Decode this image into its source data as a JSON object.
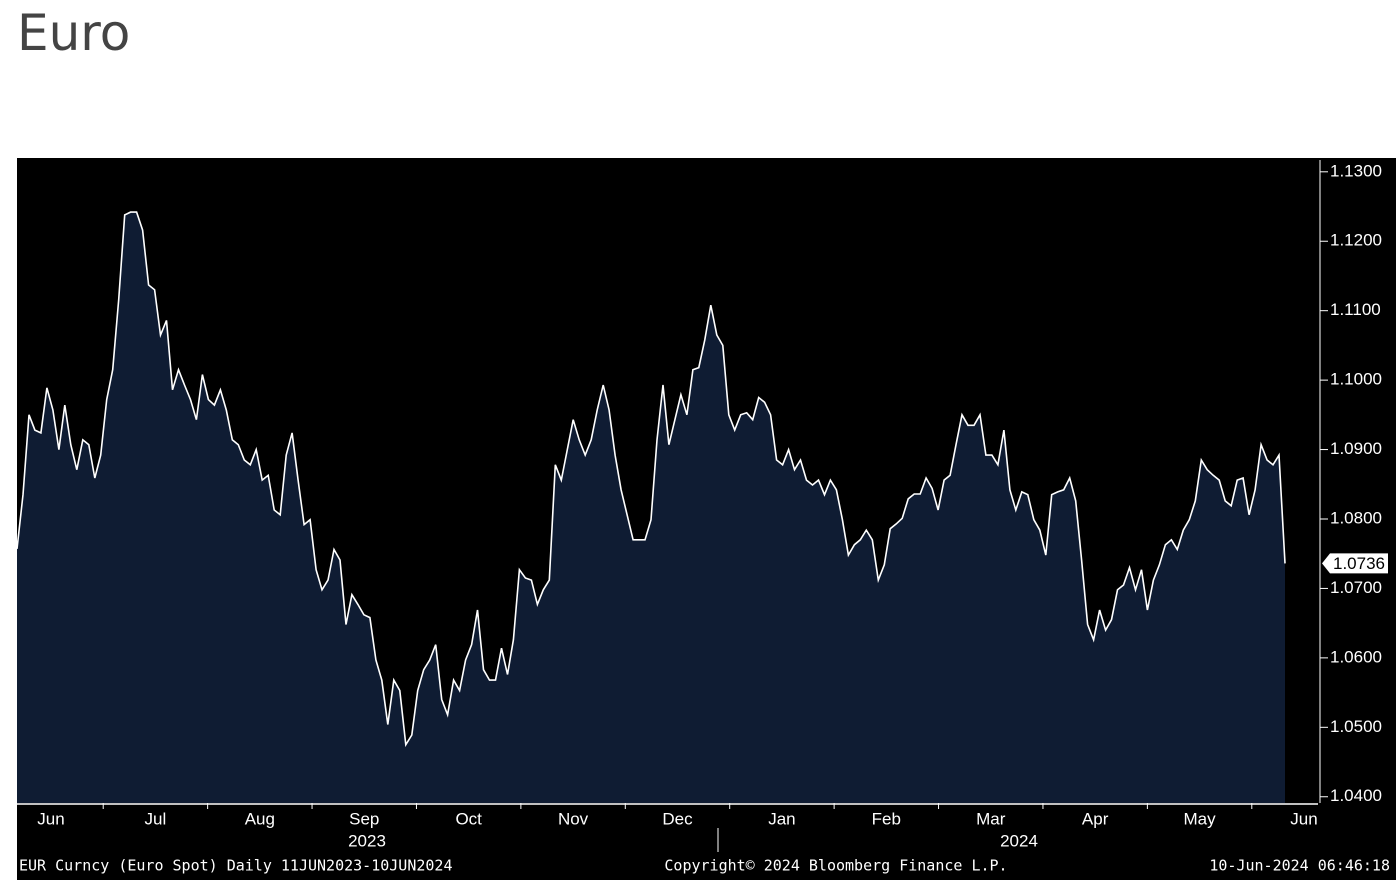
{
  "chart_data": {
    "type": "area",
    "title": "Euro",
    "color": "#0f1c33",
    "line_color": "#ffffff",
    "ylim": [
      1.0391,
      1.1317
    ],
    "yticks": [
      {
        "value": 1.04,
        "label": "1.0400"
      },
      {
        "value": 1.05,
        "label": "1.0500"
      },
      {
        "value": 1.06,
        "label": "1.0600"
      },
      {
        "value": 1.07,
        "label": "1.0700"
      },
      {
        "value": 1.08,
        "label": "1.0800"
      },
      {
        "value": 1.09,
        "label": "1.0900"
      },
      {
        "value": 1.1,
        "label": "1.1000"
      },
      {
        "value": 1.11,
        "label": "1.1100"
      },
      {
        "value": 1.12,
        "label": "1.1200"
      },
      {
        "value": 1.13,
        "label": "1.1300"
      }
    ],
    "months": [
      "Jun",
      "Jul",
      "Aug",
      "Sep",
      "Oct",
      "Nov",
      "Dec",
      "Jan",
      "Feb",
      "Mar",
      "Apr",
      "May",
      "Jun"
    ],
    "years": [
      "2023",
      "2024"
    ],
    "footer": [
      "EUR Curncy (Euro Spot)  Daily 11JUN2023-10JUN2024",
      "Copyright© 2024 Bloomberg Finance L.P.",
      "10-Jun-2024 06:46:18"
    ],
    "values": [
      1.0757,
      1.0835,
      1.095,
      1.0928,
      1.0924,
      1.0989,
      1.0957,
      1.09,
      1.0964,
      1.0907,
      1.0871,
      1.0914,
      1.0907,
      1.0859,
      1.0892,
      1.0972,
      1.1015,
      1.1116,
      1.1238,
      1.1242,
      1.1242,
      1.1216,
      1.1137,
      1.113,
      1.1065,
      1.1086,
      1.0986,
      1.1015,
      1.0993,
      1.0972,
      1.0943,
      1.1008,
      1.0972,
      1.0964,
      1.0986,
      1.0957,
      1.0914,
      1.0907,
      1.0885,
      1.0878,
      1.09,
      1.0856,
      1.0863,
      1.0813,
      1.0806,
      1.0892,
      1.0924,
      1.0856,
      1.0792,
      1.0799,
      1.0727,
      1.0698,
      1.0712,
      1.0756,
      1.0741,
      1.0648,
      1.0691,
      1.0677,
      1.0662,
      1.0658,
      1.0597,
      1.0568,
      1.0504,
      1.0568,
      1.0553,
      1.0475,
      1.0489,
      1.0553,
      1.0583,
      1.0597,
      1.0619,
      1.054,
      1.0518,
      1.0568,
      1.0553,
      1.0597,
      1.0619,
      1.0669,
      1.0583,
      1.0568,
      1.0568,
      1.0614,
      1.0576,
      1.0626,
      1.0727,
      1.0715,
      1.0712,
      1.0677,
      1.0698,
      1.0712,
      1.0878,
      1.0856,
      1.09,
      1.0943,
      1.0914,
      1.0892,
      1.0914,
      1.0957,
      1.0993,
      1.0957,
      1.0892,
      1.0842,
      1.0806,
      1.077,
      1.077,
      1.077,
      1.0799,
      1.0914,
      1.0993,
      1.0907,
      1.0943,
      1.0979,
      1.095,
      1.1015,
      1.1018,
      1.1058,
      1.1108,
      1.1065,
      1.105,
      1.095,
      1.0928,
      1.095,
      1.0953,
      1.0943,
      1.0975,
      1.0968,
      1.095,
      1.0885,
      1.0878,
      1.09,
      1.0871,
      1.0885,
      1.0856,
      1.0849,
      1.0856,
      1.0835,
      1.0856,
      1.0842,
      1.0799,
      1.0748,
      1.0763,
      1.077,
      1.0784,
      1.077,
      1.0712,
      1.0734,
      1.0786,
      1.0793,
      1.0801,
      1.0829,
      1.0836,
      1.0836,
      1.0859,
      1.0844,
      1.0813,
      1.0856,
      1.0863,
      1.0907,
      1.095,
      1.0935,
      1.0935,
      1.095,
      1.0892,
      1.0892,
      1.0878,
      1.0928,
      1.0842,
      1.0813,
      1.0839,
      1.0835,
      1.0799,
      1.0784,
      1.0748,
      1.0835,
      1.0839,
      1.0842,
      1.0859,
      1.0826,
      1.0741,
      1.0648,
      1.0626,
      1.0669,
      1.064,
      1.0655,
      1.0698,
      1.0705,
      1.073,
      1.0698,
      1.0727,
      1.0669,
      1.0712,
      1.0734,
      1.0763,
      1.077,
      1.0756,
      1.0784,
      1.0799,
      1.0826,
      1.0885,
      1.0871,
      1.0863,
      1.0856,
      1.0826,
      1.0819,
      1.0856,
      1.0859,
      1.0806,
      1.0842,
      1.0907,
      1.0885,
      1.0878,
      1.0892,
      1.0736
    ]
  }
}
